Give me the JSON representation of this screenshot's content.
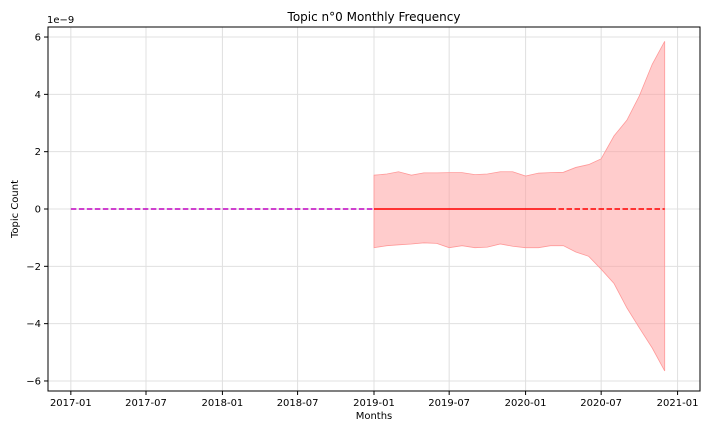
{
  "chart_data": {
    "type": "line",
    "title": "Topic n°0 Monthly Frequency",
    "xlabel": "Months",
    "ylabel": "Topic Count",
    "y_offset_label": "1e−9",
    "xlim": [
      "2016-11-07",
      "2021-02-24"
    ],
    "ylim": [
      -6.35,
      6.35
    ],
    "grid": true,
    "x_ticks": [
      "2017-01",
      "2017-07",
      "2018-01",
      "2018-07",
      "2019-01",
      "2019-07",
      "2020-01",
      "2020-07",
      "2021-01"
    ],
    "y_ticks": [
      -6,
      -4,
      -2,
      0,
      2,
      4,
      6
    ],
    "y_tick_labels": [
      "−6",
      "−4",
      "−2",
      "0",
      "2",
      "4",
      "6"
    ],
    "colors": {
      "history": "#bf00bf",
      "fitted": "#ff0000",
      "forecast": "#ff0000",
      "band": "#ff9999",
      "grid": "#e0e0e0"
    },
    "series": [
      {
        "style": "dashed",
        "color_key": "history",
        "x": [
          "2017-01-01",
          "2019-01-01"
        ],
        "y": [
          0,
          0
        ]
      },
      {
        "style": "solid",
        "color_key": "fitted",
        "x": [
          "2019-01-01",
          "2020-03-01"
        ],
        "y": [
          0,
          0
        ]
      },
      {
        "style": "dashed",
        "color_key": "forecast",
        "x": [
          "2020-03-01",
          "2020-12-01"
        ],
        "y": [
          0,
          0
        ]
      }
    ],
    "band": {
      "x": [
        "2019-01-01",
        "2019-02-01",
        "2019-03-01",
        "2019-04-01",
        "2019-05-01",
        "2019-06-01",
        "2019-07-01",
        "2019-08-01",
        "2019-09-01",
        "2019-10-01",
        "2019-11-01",
        "2019-12-01",
        "2020-01-01",
        "2020-02-01",
        "2020-03-01",
        "2020-04-01",
        "2020-05-01",
        "2020-06-01",
        "2020-07-01",
        "2020-08-01",
        "2020-09-01",
        "2020-10-01",
        "2020-11-01",
        "2020-12-01"
      ],
      "upper": [
        1.18,
        1.22,
        1.3,
        1.18,
        1.26,
        1.26,
        1.27,
        1.27,
        1.2,
        1.22,
        1.3,
        1.3,
        1.15,
        1.25,
        1.27,
        1.28,
        1.45,
        1.55,
        1.75,
        2.55,
        3.1,
        3.95,
        5.05,
        5.85
      ],
      "lower": [
        -1.35,
        -1.28,
        -1.25,
        -1.22,
        -1.18,
        -1.2,
        -1.35,
        -1.28,
        -1.35,
        -1.33,
        -1.22,
        -1.3,
        -1.35,
        -1.35,
        -1.28,
        -1.28,
        -1.5,
        -1.65,
        -2.1,
        -2.6,
        -3.45,
        -4.15,
        -4.85,
        -5.65
      ]
    }
  }
}
